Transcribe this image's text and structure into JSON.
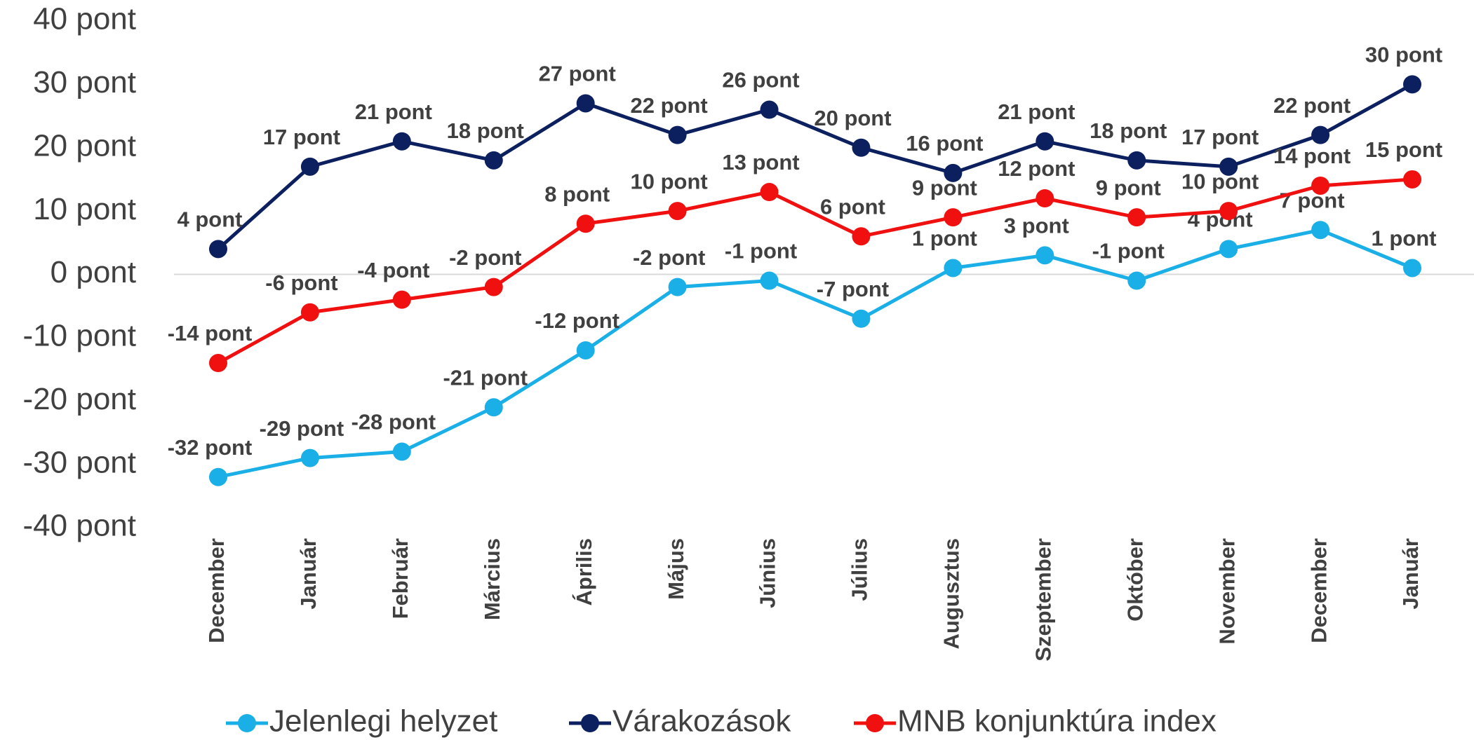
{
  "chart_data": {
    "type": "line",
    "categories": [
      "December",
      "Január",
      "Február",
      "Március",
      "Április",
      "Május",
      "Június",
      "Július",
      "Augusztus",
      "Szeptember",
      "Október",
      "November",
      "December",
      "Január"
    ],
    "series": [
      {
        "name": "Jelenlegi helyzet",
        "color": "#1aafe6",
        "values": [
          -32,
          -29,
          -28,
          -21,
          -12,
          -2,
          -1,
          -7,
          1,
          3,
          -1,
          4,
          7,
          1
        ],
        "value_labels": [
          "-32 pont",
          "-29 pont",
          "-28 pont",
          "-21 pont",
          "-12 pont",
          "-2 pont",
          "-1 pont",
          "-7 pont",
          "1 pont",
          "3 pont",
          "-1 pont",
          "4 pont",
          "7 pont",
          "1 pont"
        ]
      },
      {
        "name": "Várakozások",
        "color": "#0c1f5e",
        "values": [
          4,
          17,
          21,
          18,
          27,
          22,
          26,
          20,
          16,
          21,
          18,
          17,
          22,
          30
        ],
        "value_labels": [
          "4 pont",
          "17 pont",
          "21 pont",
          "18 pont",
          "27 pont",
          "22 pont",
          "26 pont",
          "20 pont",
          "16 pont",
          "21 pont",
          "18 pont",
          "17 pont",
          "22 pont",
          "30 pont"
        ]
      },
      {
        "name": "MNB konjunktúra index",
        "color": "#f01010",
        "values": [
          -14,
          -6,
          -4,
          -2,
          8,
          10,
          13,
          6,
          9,
          12,
          9,
          10,
          14,
          15
        ],
        "value_labels": [
          "-14 pont",
          "-6 pont",
          "-4 pont",
          "-2 pont",
          "8 pont",
          "10 pont",
          "13 pont",
          "6 pont",
          "9 pont",
          "12 pont",
          "9 pont",
          "10 pont",
          "14 pont",
          "15 pont"
        ]
      }
    ],
    "ylim": [
      -40,
      40
    ],
    "yticks": [
      {
        "value": 40,
        "label": "40 pont"
      },
      {
        "value": 30,
        "label": "30 pont"
      },
      {
        "value": 20,
        "label": "20 pont"
      },
      {
        "value": 10,
        "label": "10 pont"
      },
      {
        "value": 0,
        "label": "0 pont"
      },
      {
        "value": -10,
        "label": "-10 pont"
      },
      {
        "value": -20,
        "label": "-20 pont"
      },
      {
        "value": -30,
        "label": "-30 pont"
      },
      {
        "value": -40,
        "label": "-40 pont"
      }
    ],
    "grid": false
  }
}
